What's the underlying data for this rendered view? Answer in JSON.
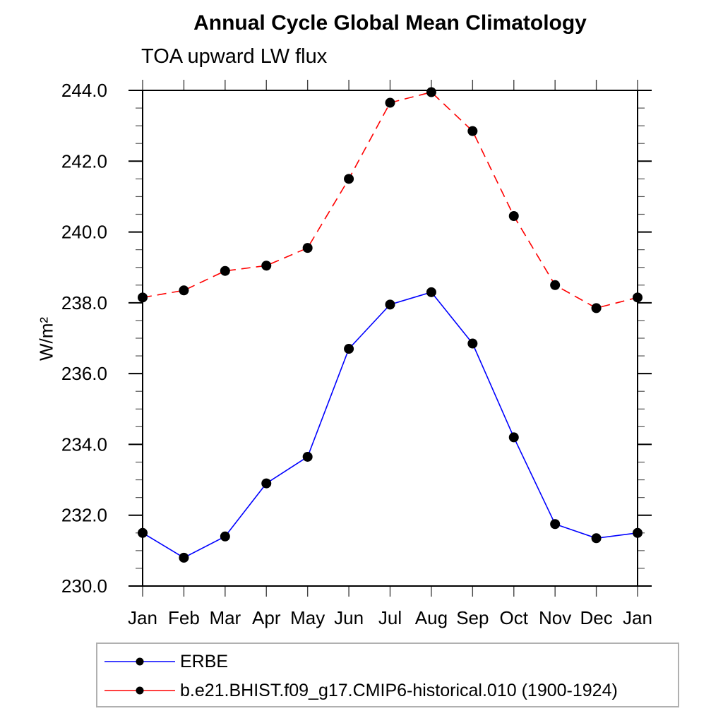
{
  "chart_data": {
    "type": "line",
    "title": "Annual Cycle Global Mean Climatology",
    "subtitle": "TOA upward LW flux",
    "ylabel": "W/m²",
    "xlabel": "",
    "categories": [
      "Jan",
      "Feb",
      "Mar",
      "Apr",
      "May",
      "Jun",
      "Jul",
      "Aug",
      "Sep",
      "Oct",
      "Nov",
      "Dec",
      "Jan"
    ],
    "series": [
      {
        "name": "ERBE",
        "color": "#0000ff",
        "line_style": "solid",
        "marker": "circle",
        "marker_color": "#000000",
        "values": [
          231.5,
          230.8,
          231.4,
          232.9,
          233.65,
          236.7,
          237.95,
          238.3,
          236.85,
          234.2,
          231.75,
          231.35,
          231.5
        ]
      },
      {
        "name": "b.e21.BHIST.f09_g17.CMIP6-historical.010 (1900-1924)",
        "color": "#ff0000",
        "line_style": "dashed",
        "marker": "circle",
        "marker_color": "#000000",
        "values": [
          238.15,
          238.35,
          238.9,
          239.05,
          239.55,
          241.5,
          243.65,
          243.95,
          242.85,
          240.45,
          238.5,
          237.85,
          238.15
        ]
      }
    ],
    "ylim": [
      230,
      244
    ],
    "ytick_major": 2.0,
    "ytick_minor": 0.5,
    "ytick_labels": [
      "230.0",
      "232.0",
      "234.0",
      "236.0",
      "238.0",
      "240.0",
      "242.0",
      "244.0"
    ],
    "grid": false,
    "legend_position": "bottom"
  }
}
